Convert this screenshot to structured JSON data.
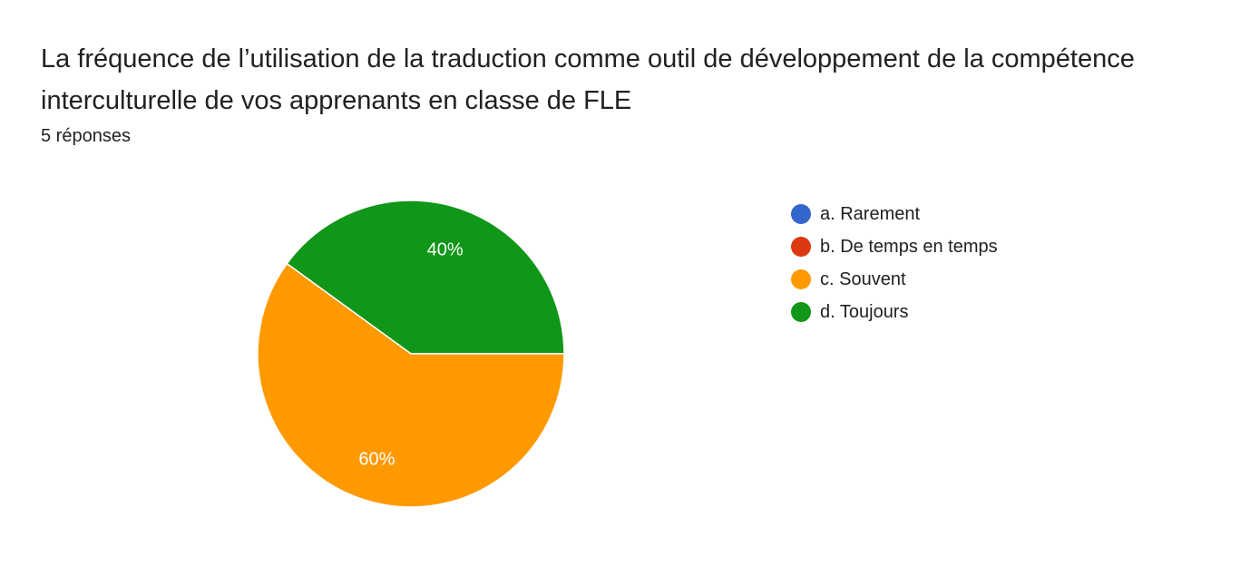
{
  "header": {
    "title": "La fréquence de l’utilisation de la traduction comme outil de développement de la compétence interculturelle de vos apprenants en classe de FLE",
    "responses": "5 réponses"
  },
  "chart_data": {
    "type": "pie",
    "title": "La fréquence de l’utilisation de la traduction comme outil de développement de la compétence interculturelle de vos apprenants en classe de FLE",
    "categories": [
      "a. Rarement",
      "b. De temps en temps",
      "c. Souvent",
      "d. Toujours"
    ],
    "values": [
      0,
      0,
      60,
      40
    ],
    "value_labels": [
      "",
      "",
      "60%",
      "40%"
    ],
    "colors": [
      "#3366cc",
      "#dc3912",
      "#ff9900",
      "#109618"
    ],
    "legend_position": "right"
  }
}
